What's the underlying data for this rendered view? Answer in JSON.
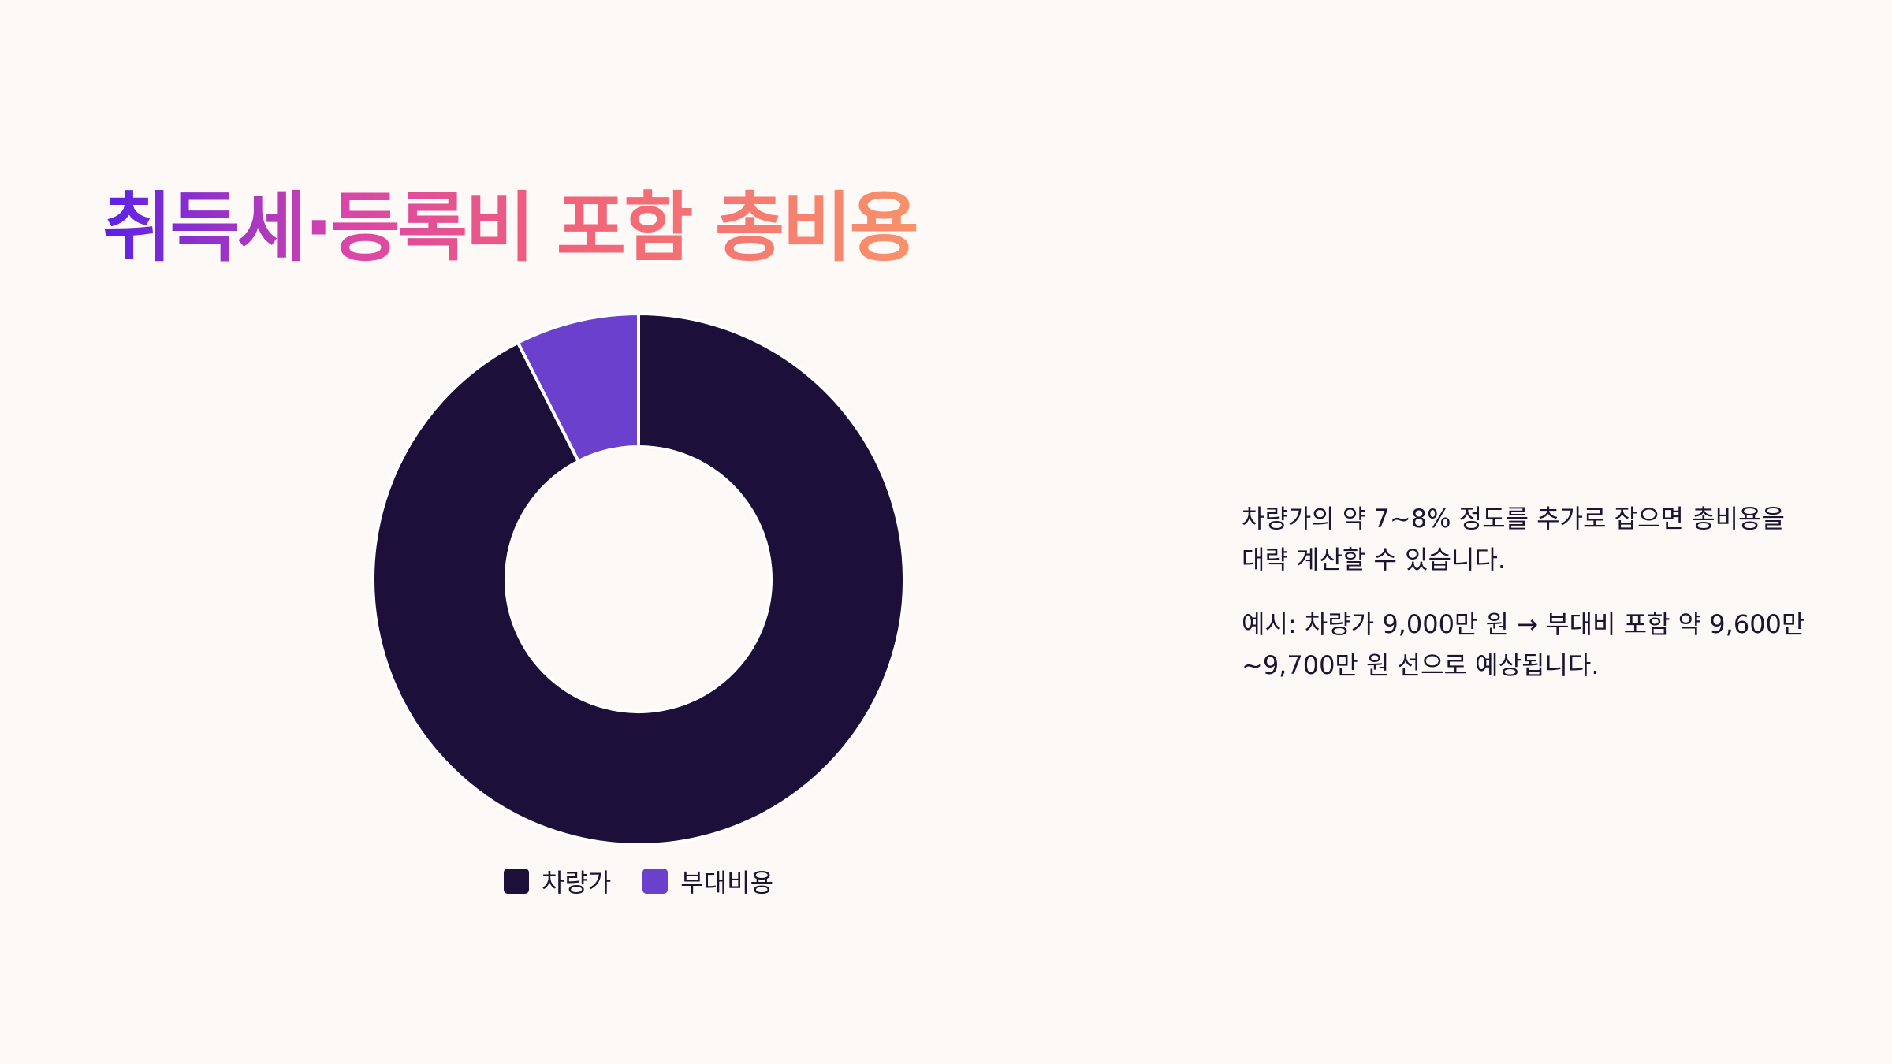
{
  "title": "취득세·등록비 포함 총비용",
  "chart_data": {
    "type": "pie",
    "donut": true,
    "categories": [
      "차량가",
      "부대비용"
    ],
    "values": [
      92.5,
      7.5
    ],
    "colors": [
      "#1c103a",
      "#6b40cc"
    ],
    "legend": "bottom"
  },
  "description": {
    "paragraph1": "차량가의 약 7~8% 정도를 추가로 잡으면 총비용을 대략 계산할 수 있습니다.",
    "paragraph2": "예시: 차량가 9,000만 원 → 부대비 포함 약 9,600만~9,700만 원 선으로 예상됩니다."
  }
}
